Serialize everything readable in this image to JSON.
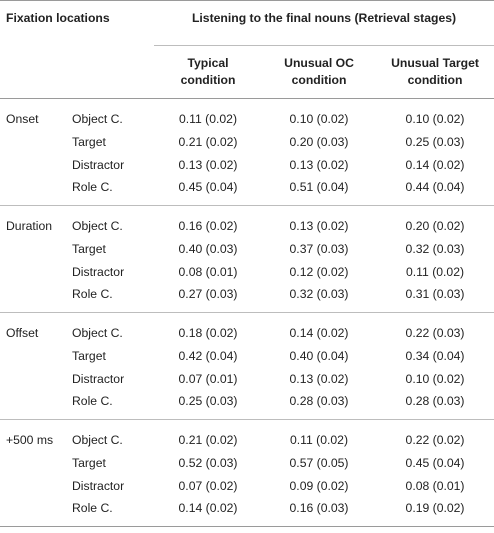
{
  "header": {
    "fixation_locations": "Fixation locations",
    "listening": "Listening to the final nouns (Retrieval stages)",
    "conditions": [
      "Typical\ncondition",
      "Unusual OC\ncondition",
      "Unusual Target\ncondition"
    ]
  },
  "groups": [
    {
      "stage": "Onset",
      "rows": [
        {
          "loc": "Object C.",
          "v": [
            "0.11 (0.02)",
            "0.10 (0.02)",
            "0.10 (0.02)"
          ]
        },
        {
          "loc": "Target",
          "v": [
            "0.21 (0.02)",
            "0.20 (0.03)",
            "0.25 (0.03)"
          ]
        },
        {
          "loc": "Distractor",
          "v": [
            "0.13 (0.02)",
            "0.13 (0.02)",
            "0.14 (0.02)"
          ]
        },
        {
          "loc": "Role C.",
          "v": [
            "0.45 (0.04)",
            "0.51 (0.04)",
            "0.44 (0.04)"
          ]
        }
      ]
    },
    {
      "stage": "Duration",
      "rows": [
        {
          "loc": "Object C.",
          "v": [
            "0.16 (0.02)",
            "0.13 (0.02)",
            "0.20 (0.02)"
          ]
        },
        {
          "loc": "Target",
          "v": [
            "0.40 (0.03)",
            "0.37 (0.03)",
            "0.32 (0.03)"
          ]
        },
        {
          "loc": "Distractor",
          "v": [
            "0.08 (0.01)",
            "0.12 (0.02)",
            "0.11 (0.02)"
          ]
        },
        {
          "loc": "Role C.",
          "v": [
            "0.27 (0.03)",
            "0.32 (0.03)",
            "0.31 (0.03)"
          ]
        }
      ]
    },
    {
      "stage": "Offset",
      "rows": [
        {
          "loc": "Object C.",
          "v": [
            "0.18 (0.02)",
            "0.14 (0.02)",
            "0.22 (0.03)"
          ]
        },
        {
          "loc": "Target",
          "v": [
            "0.42 (0.04)",
            "0.40 (0.04)",
            "0.34 (0.04)"
          ]
        },
        {
          "loc": "Distractor",
          "v": [
            "0.07 (0.01)",
            "0.13 (0.02)",
            "0.10 (0.02)"
          ]
        },
        {
          "loc": "Role C.",
          "v": [
            "0.25 (0.03)",
            "0.28 (0.03)",
            "0.28 (0.03)"
          ]
        }
      ]
    },
    {
      "stage": "+500 ms",
      "rows": [
        {
          "loc": "Object C.",
          "v": [
            "0.21 (0.02)",
            "0.11 (0.02)",
            "0.22 (0.02)"
          ]
        },
        {
          "loc": "Target",
          "v": [
            "0.52 (0.03)",
            "0.57 (0.05)",
            "0.45 (0.04)"
          ]
        },
        {
          "loc": "Distractor",
          "v": [
            "0.07 (0.02)",
            "0.09 (0.02)",
            "0.08 (0.01)"
          ]
        },
        {
          "loc": "Role C.",
          "v": [
            "0.14 (0.02)",
            "0.16 (0.03)",
            "0.19 (0.02)"
          ]
        }
      ]
    }
  ]
}
